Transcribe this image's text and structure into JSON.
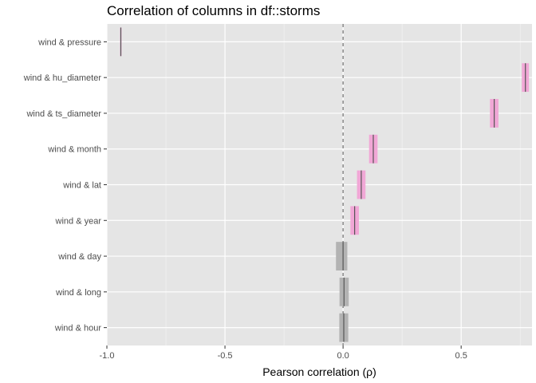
{
  "chart_data": {
    "type": "crossbar",
    "title": "Correlation of columns in df::storms",
    "xlabel": "Pearson correlation (ρ)",
    "ylabel": "",
    "xlim": [
      -1.0,
      0.8
    ],
    "x_ticks": [
      -1.0,
      -0.5,
      0.0,
      0.5
    ],
    "x_tick_labels": [
      "-1.0",
      "-0.5",
      "0.0",
      "0.5"
    ],
    "reference_line": 0.0,
    "grid": true,
    "legend": "none",
    "categories": [
      "wind & pressure",
      "wind & hu_diameter",
      "wind & ts_diameter",
      "wind & month",
      "wind & lat",
      "wind & year",
      "wind & day",
      "wind & long",
      "wind & hour"
    ],
    "estimate": [
      -0.941,
      0.772,
      0.64,
      0.128,
      0.077,
      0.049,
      0.0,
      0.004,
      0.003
    ],
    "lower": [
      -0.944,
      0.757,
      0.622,
      0.11,
      0.059,
      0.031,
      -0.03,
      -0.015,
      -0.016
    ],
    "upper": [
      -0.938,
      0.787,
      0.658,
      0.146,
      0.095,
      0.067,
      0.018,
      0.024,
      0.022
    ],
    "significant": [
      true,
      true,
      true,
      true,
      true,
      true,
      false,
      false,
      false
    ],
    "colors": {
      "significant_fill": "#f1a7d6",
      "nonsignificant_fill": "#b3b3b3",
      "estimate_line": "#555555",
      "panel": "#e5e5e5",
      "grid_major": "#ffffff",
      "zero_line": "#666666"
    }
  }
}
